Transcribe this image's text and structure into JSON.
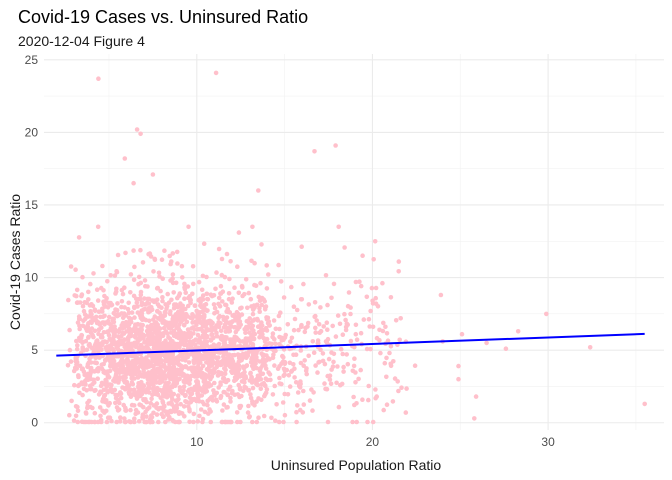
{
  "chart_data": {
    "type": "scatter",
    "title": "Covid-19 Cases vs. Uninsured Ratio",
    "subtitle": "2020-12-04 Figure 4",
    "xlabel": "Uninsured Population Ratio",
    "ylabel": "Covid-19 Cases Ratio",
    "xlim": [
      1.3,
      36.6
    ],
    "ylim": [
      -0.5,
      25.4
    ],
    "x_ticks": [
      10,
      20,
      30
    ],
    "x_tick_labels": [
      "10",
      "20",
      "30"
    ],
    "y_ticks": [
      0,
      5,
      10,
      15,
      20,
      25
    ],
    "y_tick_labels": [
      "0",
      "5",
      "10",
      "15",
      "20",
      "25"
    ],
    "grid": true,
    "legend": "none",
    "point_color": "#ffc0cb",
    "line_color": "#0000ff",
    "trend_line": {
      "x": [
        2.0,
        35.5
      ],
      "y": [
        4.62,
        6.12
      ]
    },
    "points_note_outliers": [
      [
        4.4,
        23.7
      ],
      [
        11.1,
        24.1
      ],
      [
        6.6,
        20.2
      ],
      [
        6.8,
        19.9
      ],
      [
        5.9,
        18.2
      ],
      [
        17.9,
        19.1
      ],
      [
        16.7,
        18.7
      ],
      [
        7.5,
        17.1
      ],
      [
        6.4,
        16.5
      ],
      [
        13.5,
        16.0
      ],
      [
        35.5,
        1.3
      ],
      [
        32.4,
        5.2
      ],
      [
        29.9,
        7.5
      ],
      [
        25.9,
        1.8
      ],
      [
        25.8,
        0.3
      ],
      [
        24.9,
        3.0
      ],
      [
        24.9,
        3.9
      ],
      [
        28.3,
        6.3
      ],
      [
        27.6,
        5.1
      ],
      [
        26.5,
        5.5
      ],
      [
        21.5,
        11.1
      ],
      [
        23.9,
        8.8
      ],
      [
        21.9,
        0.7
      ],
      [
        25.1,
        6.1
      ],
      [
        24.0,
        5.6
      ]
    ]
  }
}
